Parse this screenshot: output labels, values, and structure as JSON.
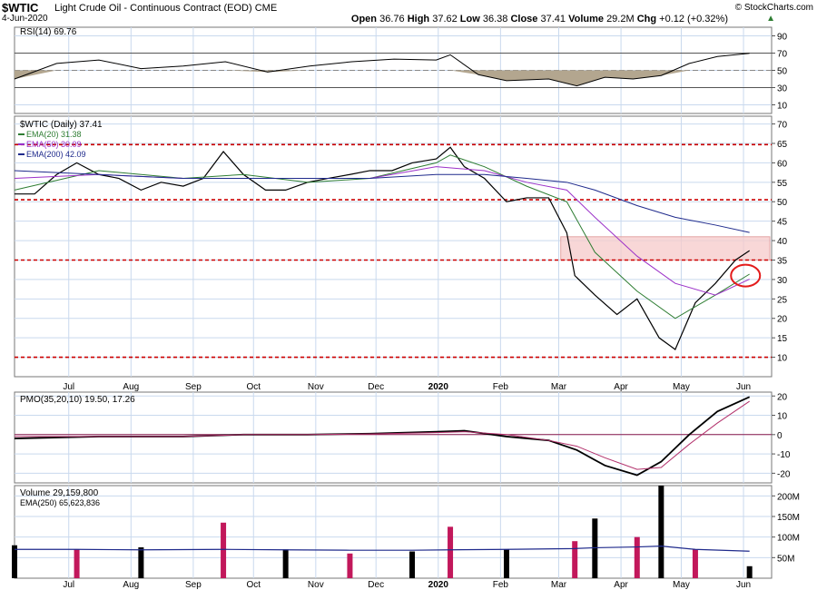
{
  "header": {
    "symbol": "$WTIC",
    "name": "Light Crude Oil - Continuous Contract (EOD)",
    "exchange": "CME",
    "date": "4-Jun-2020",
    "copyright": "© StockCharts.com",
    "quote": {
      "open_label": "Open",
      "open": "36.76",
      "high_label": "High",
      "high": "37.62",
      "low_label": "Low",
      "low": "36.38",
      "close_label": "Close",
      "close": "37.41",
      "volume_label": "Volume",
      "volume": "29.2M",
      "chg_label": "Chg",
      "chg": "+0.12 (+0.32%)"
    }
  },
  "colors": {
    "grid": "#c9d9ee",
    "frame": "#777777",
    "price": "#000000",
    "ema20": "#2e7d32",
    "ema50": "#9b30c8",
    "ema200": "#1f2a8c",
    "dashed_level": "#cc0000",
    "resistance_zone": "#f6c9c9",
    "circle": "#e31b1b",
    "pmo_signal": "#b2306b",
    "volume_up": "#000000",
    "volume_down": "#c2185b",
    "volume_ema": "#1f2a8c",
    "rsi_fill": "#b3a68f"
  },
  "chart_data": [
    {
      "panel": "rsi",
      "type": "line",
      "legend": "RSI(14) 69.76",
      "y_ticks": [
        10,
        30,
        50,
        70,
        90
      ],
      "reference_lines": [
        30,
        70
      ],
      "ylim": [
        0,
        100
      ],
      "x": [
        "2019-06-04",
        "2019-06-25",
        "2019-07-16",
        "2019-08-06",
        "2019-08-27",
        "2019-09-17",
        "2019-10-08",
        "2019-10-29",
        "2019-11-19",
        "2019-12-10",
        "2019-12-31",
        "2020-01-07",
        "2020-01-21",
        "2020-02-04",
        "2020-02-25",
        "2020-03-10",
        "2020-03-24",
        "2020-04-07",
        "2020-04-21",
        "2020-05-05",
        "2020-05-19",
        "2020-06-04"
      ],
      "values": [
        40,
        58,
        62,
        52,
        55,
        60,
        48,
        55,
        60,
        63,
        62,
        68,
        45,
        38,
        40,
        32,
        42,
        40,
        44,
        58,
        66,
        69.76
      ]
    },
    {
      "panel": "price",
      "type": "line",
      "title": "$WTIC (Daily) 37.41",
      "y_ticks": [
        10,
        15,
        20,
        25,
        30,
        35,
        40,
        45,
        50,
        55,
        60,
        65,
        70
      ],
      "ylim": [
        5,
        72
      ],
      "x_ticks": [
        "Jul",
        "Aug",
        "Sep",
        "Oct",
        "Nov",
        "Dec",
        "2020",
        "Feb",
        "Mar",
        "Apr",
        "May",
        "Jun"
      ],
      "x_tick_dates": [
        "2019-07-01",
        "2019-08-01",
        "2019-09-01",
        "2019-10-01",
        "2019-11-01",
        "2019-12-01",
        "2020-01-01",
        "2020-02-01",
        "2020-03-01",
        "2020-04-01",
        "2020-05-01",
        "2020-06-01"
      ],
      "x_range": [
        "2019-06-04",
        "2020-06-15"
      ],
      "dashed_levels": [
        64.7,
        50.5,
        35.0,
        10.0
      ],
      "resistance_zone": [
        35.0,
        41.0
      ],
      "resistance_zone_start": "2020-03-02",
      "highlight_circle": {
        "x": "2020-06-02",
        "y": 31
      },
      "series": [
        {
          "name": "$WTIC",
          "role": "price",
          "x": [
            "2019-06-04",
            "2019-06-14",
            "2019-06-25",
            "2019-07-05",
            "2019-07-16",
            "2019-07-26",
            "2019-08-06",
            "2019-08-16",
            "2019-08-27",
            "2019-09-06",
            "2019-09-16",
            "2019-09-26",
            "2019-10-07",
            "2019-10-17",
            "2019-10-28",
            "2019-11-07",
            "2019-11-18",
            "2019-11-28",
            "2019-12-09",
            "2019-12-19",
            "2019-12-31",
            "2020-01-07",
            "2020-01-14",
            "2020-01-24",
            "2020-02-04",
            "2020-02-14",
            "2020-02-25",
            "2020-03-05",
            "2020-03-09",
            "2020-03-19",
            "2020-03-30",
            "2020-04-09",
            "2020-04-20",
            "2020-04-28",
            "2020-05-08",
            "2020-05-18",
            "2020-05-28",
            "2020-06-04"
          ],
          "values": [
            52,
            52,
            57,
            60,
            57,
            56,
            53,
            55,
            54,
            56,
            62.9,
            57,
            53,
            53,
            55,
            56,
            57,
            58,
            58,
            60,
            61,
            64,
            59,
            56,
            50,
            51,
            51,
            42,
            31,
            26,
            21,
            25,
            15,
            12,
            24,
            29,
            35,
            37.41
          ]
        },
        {
          "name": "EMA(20) 31.38",
          "role": "ema20",
          "x": [
            "2019-06-04",
            "2019-07-16",
            "2019-08-27",
            "2019-09-26",
            "2019-10-28",
            "2019-11-28",
            "2019-12-31",
            "2020-01-07",
            "2020-01-24",
            "2020-02-14",
            "2020-03-05",
            "2020-03-19",
            "2020-04-09",
            "2020-04-28",
            "2020-05-18",
            "2020-06-04"
          ],
          "values": [
            53,
            58,
            56,
            57,
            55,
            56,
            60,
            62,
            59,
            54,
            50,
            37,
            27,
            20,
            26,
            31.38
          ]
        },
        {
          "name": "EMA(50) 30.09",
          "role": "ema50",
          "x": [
            "2019-06-04",
            "2019-07-16",
            "2019-08-27",
            "2019-09-26",
            "2019-10-28",
            "2019-11-28",
            "2019-12-31",
            "2020-01-24",
            "2020-02-14",
            "2020-03-05",
            "2020-03-19",
            "2020-04-09",
            "2020-04-28",
            "2020-05-18",
            "2020-06-04"
          ],
          "values": [
            56,
            57,
            56,
            56,
            56,
            56,
            59,
            58,
            55,
            53,
            46,
            36,
            29,
            26,
            30.09
          ]
        },
        {
          "name": "EMA(200) 42.09",
          "role": "ema200",
          "x": [
            "2019-06-04",
            "2019-07-16",
            "2019-08-27",
            "2019-09-26",
            "2019-10-28",
            "2019-11-28",
            "2019-12-31",
            "2020-01-24",
            "2020-02-14",
            "2020-03-05",
            "2020-03-19",
            "2020-04-09",
            "2020-04-28",
            "2020-05-18",
            "2020-06-04"
          ],
          "values": [
            58,
            57,
            56,
            56,
            56,
            56,
            57,
            57,
            56,
            55,
            53,
            49,
            46,
            44,
            42.09
          ]
        }
      ]
    },
    {
      "panel": "pmo",
      "type": "line",
      "legend": "PMO(35,20,10) 19.50, 17.26",
      "y_ticks": [
        -20,
        -10,
        0,
        10,
        20
      ],
      "ylim": [
        -25,
        22
      ],
      "series": [
        {
          "name": "PMO",
          "x": [
            "2019-06-04",
            "2019-07-16",
            "2019-08-27",
            "2019-09-26",
            "2019-10-28",
            "2019-11-28",
            "2019-12-31",
            "2020-01-14",
            "2020-02-04",
            "2020-02-25",
            "2020-03-10",
            "2020-03-24",
            "2020-04-09",
            "2020-04-21",
            "2020-05-05",
            "2020-05-19",
            "2020-06-04"
          ],
          "values": [
            -2,
            -1,
            -1,
            0,
            0,
            0.5,
            1.5,
            2,
            -1,
            -3,
            -8,
            -16,
            -21,
            -14,
            0,
            12,
            19.5
          ]
        },
        {
          "name": "Signal",
          "x": [
            "2019-06-04",
            "2019-07-16",
            "2019-08-27",
            "2019-09-26",
            "2019-10-28",
            "2019-11-28",
            "2019-12-31",
            "2020-01-14",
            "2020-02-04",
            "2020-02-25",
            "2020-03-10",
            "2020-03-24",
            "2020-04-09",
            "2020-04-21",
            "2020-05-05",
            "2020-05-19",
            "2020-06-04"
          ],
          "values": [
            -1,
            -1,
            -1,
            0,
            0,
            0.3,
            1,
            1.5,
            0,
            -3,
            -6,
            -12,
            -18,
            -17,
            -5,
            6,
            17.26
          ]
        }
      ]
    },
    {
      "panel": "volume",
      "type": "bar",
      "legend": [
        "Volume 29,159,800",
        "EMA(250) 65,623,836"
      ],
      "y_ticks_labels": [
        "50M",
        "100M",
        "150M",
        "200M"
      ],
      "y_ticks": [
        50,
        100,
        150,
        200
      ],
      "ylim": [
        0,
        225
      ],
      "x": [
        "2019-06-04",
        "2019-07-05",
        "2019-08-06",
        "2019-09-16",
        "2019-10-17",
        "2019-11-18",
        "2019-12-19",
        "2020-01-07",
        "2020-02-04",
        "2020-03-09",
        "2020-03-19",
        "2020-04-09",
        "2020-04-21",
        "2020-05-08",
        "2020-06-04"
      ],
      "values": [
        80,
        70,
        75,
        135,
        70,
        60,
        65,
        125,
        70,
        90,
        145,
        100,
        225,
        70,
        29.16
      ],
      "ema_values": [
        70,
        70,
        69,
        70,
        69,
        68,
        68,
        69,
        70,
        72,
        74,
        76,
        78,
        70,
        65.62
      ]
    }
  ]
}
